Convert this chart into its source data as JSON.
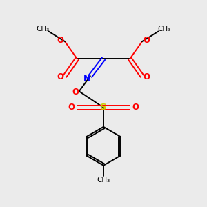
{
  "background_color": "#ebebeb",
  "atom_colors": {
    "C": "#000000",
    "O": "#ff0000",
    "N": "#0000ff",
    "S": "#cccc00",
    "H": "#000000"
  },
  "bond_color": "#000000",
  "figsize": [
    3.0,
    3.0
  ],
  "dpi": 100,
  "xlim": [
    0,
    10
  ],
  "ylim": [
    0,
    10
  ]
}
